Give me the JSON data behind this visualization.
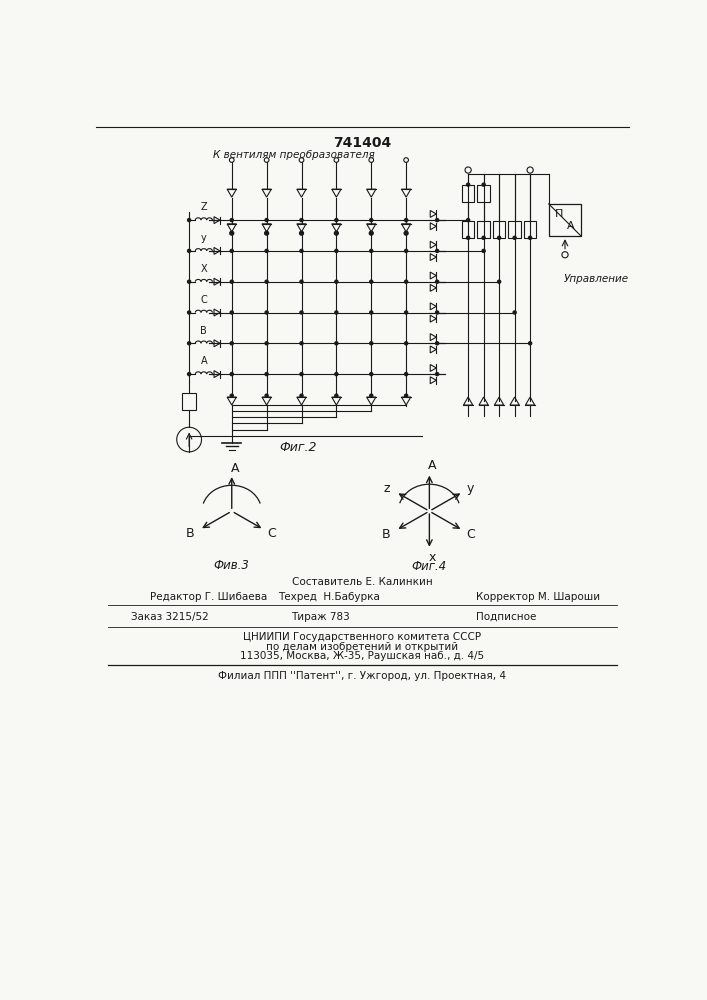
{
  "patent_number": "741404",
  "bg_color": "#f8f8f4",
  "line_color": "#1a1a1a",
  "fig2_label": "Фиг.2",
  "fig3_label": "Фив.3",
  "fig4_label": "Фиг.4",
  "top_text": "К вентилям преобразователя",
  "right_label": "Управление",
  "left_labels": [
    "Z",
    "y",
    "X",
    "C",
    "B",
    "A"
  ],
  "footer_line1": "Составитель Е. Калинкин",
  "footer_line2_left": "Редактор Г. Шибаева",
  "footer_line2_mid": "Техред  Н.Бабурка",
  "footer_line2_right": "Корректор М. Шароши",
  "footer_line3_left": "Заказ 3215/52",
  "footer_line3_mid": "Тираж 783",
  "footer_line3_right": "Подписное",
  "footer_line4": "ЦНИИПИ Государственного комитета СССР",
  "footer_line5": "по делам изобретений и открытий",
  "footer_line6": "113035, Москва, Ж-35, Раушская наб., д. 4/5",
  "footer_line7": "Филиал ППП ''Патент'', г. Ужгород, ул. Проектная, 4"
}
